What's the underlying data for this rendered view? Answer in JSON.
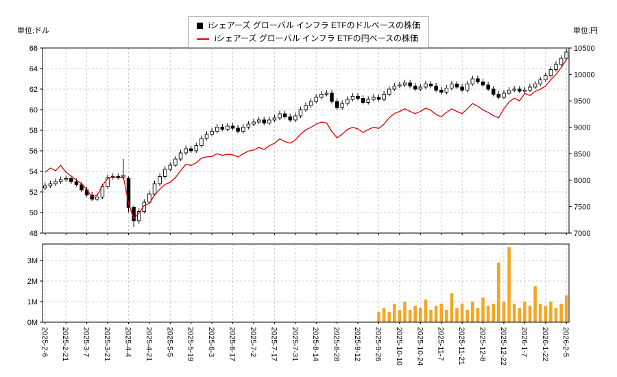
{
  "legend": {
    "usd_label": "iシェアーズ グローバル インフラ ETFのドルベースの株価",
    "jpy_label": "iシェアーズ グローバル インフラ ETFの円ベースの株価"
  },
  "axes": {
    "left_unit": "単位:ドル",
    "right_unit": "単位:円"
  },
  "colors": {
    "usd": "#000000",
    "jpy": "#dd0000",
    "volume": "#f5a623",
    "grid": "#cccccc"
  },
  "chart_data": [
    {
      "type": "candlestick",
      "name": "price-panel",
      "y_left": {
        "unit": "単位:ドル",
        "min": 48,
        "max": 66,
        "ticks": [
          48,
          50,
          52,
          54,
          56,
          58,
          60,
          62,
          64,
          66
        ]
      },
      "y_right": {
        "unit": "単位:円",
        "min": 7000,
        "max": 10500,
        "ticks": [
          7000,
          7500,
          8000,
          8500,
          9000,
          9500,
          10000,
          10500
        ]
      },
      "x_ticks": {
        "indices": [
          0,
          4,
          8,
          12,
          16,
          20,
          24,
          28,
          32,
          36,
          40,
          44,
          48,
          52,
          56,
          60,
          64,
          68,
          72,
          76,
          80,
          84,
          88,
          92,
          96,
          100
        ],
        "labels": [
          "2025-2-6",
          "2025-2-21",
          "2025-3-7",
          "2025-3-21",
          "2025-4-4",
          "2025-4-21",
          "2025-5-5",
          "2025-5-19",
          "2025-6-3",
          "2025-6-17",
          "2025-7-2",
          "2025-7-17",
          "2025-7-31",
          "2025-8-14",
          "2025-8-28",
          "2025-9-12",
          "2025-9-26",
          "2025-10-10",
          "2025-10-24",
          "2025-11-7",
          "2025-11-21",
          "2025-12-8",
          "2025-12-22",
          "2026-1-7",
          "2026-1-22",
          "2026-2-5"
        ]
      },
      "series": [
        {
          "name": "iシェアーズ グローバル インフラ ETFのドルベースの株価",
          "type": "candlestick",
          "axis": "left",
          "color": "#000000",
          "ohlc": [
            [
              52.4,
              52.9,
              52.2,
              52.6
            ],
            [
              52.6,
              53.1,
              52.4,
              52.8
            ],
            [
              52.8,
              53.3,
              52.6,
              53.0
            ],
            [
              53.0,
              53.5,
              52.8,
              53.2
            ],
            [
              53.2,
              53.6,
              53.0,
              53.3
            ],
            [
              53.3,
              53.6,
              52.8,
              53.0
            ],
            [
              53.0,
              53.3,
              52.5,
              52.7
            ],
            [
              52.7,
              53.0,
              52.0,
              52.2
            ],
            [
              52.2,
              52.5,
              51.5,
              51.7
            ],
            [
              51.7,
              52.0,
              51.1,
              51.3
            ],
            [
              51.3,
              51.8,
              51.1,
              51.5
            ],
            [
              51.5,
              52.8,
              51.3,
              52.5
            ],
            [
              52.5,
              53.7,
              52.3,
              53.4
            ],
            [
              53.4,
              53.8,
              53.2,
              53.5
            ],
            [
              53.5,
              53.8,
              53.2,
              53.4
            ],
            [
              53.4,
              55.2,
              53.2,
              53.6
            ],
            [
              53.3,
              53.5,
              50.0,
              50.5
            ],
            [
              50.5,
              50.7,
              48.6,
              49.2
            ],
            [
              49.2,
              50.4,
              48.9,
              50.1
            ],
            [
              50.1,
              51.3,
              49.9,
              51.0
            ],
            [
              51.0,
              52.1,
              50.8,
              51.8
            ],
            [
              51.8,
              53.1,
              51.6,
              52.8
            ],
            [
              52.8,
              53.8,
              52.6,
              53.5
            ],
            [
              53.5,
              54.5,
              53.3,
              54.2
            ],
            [
              54.2,
              54.9,
              54.0,
              54.6
            ],
            [
              54.6,
              55.5,
              54.4,
              55.2
            ],
            [
              55.2,
              56.1,
              55.0,
              55.8
            ],
            [
              55.8,
              56.5,
              55.6,
              56.2
            ],
            [
              56.2,
              56.5,
              55.8,
              56.0
            ],
            [
              56.0,
              56.8,
              55.8,
              56.5
            ],
            [
              56.5,
              57.5,
              56.3,
              57.2
            ],
            [
              57.2,
              57.9,
              57.0,
              57.6
            ],
            [
              57.6,
              58.2,
              57.4,
              57.9
            ],
            [
              57.9,
              58.6,
              57.7,
              58.3
            ],
            [
              58.3,
              58.6,
              57.9,
              58.1
            ],
            [
              58.1,
              58.7,
              57.9,
              58.4
            ],
            [
              58.4,
              58.7,
              58.0,
              58.2
            ],
            [
              58.2,
              58.5,
              57.7,
              57.9
            ],
            [
              57.9,
              58.6,
              57.7,
              58.3
            ],
            [
              58.3,
              58.9,
              58.1,
              58.6
            ],
            [
              58.6,
              59.1,
              58.4,
              58.8
            ],
            [
              58.8,
              59.3,
              58.6,
              59.0
            ],
            [
              59.0,
              59.3,
              58.5,
              58.7
            ],
            [
              58.7,
              59.3,
              58.5,
              59.0
            ],
            [
              59.0,
              59.5,
              58.8,
              59.2
            ],
            [
              59.2,
              59.9,
              59.0,
              59.6
            ],
            [
              59.6,
              59.9,
              59.1,
              59.3
            ],
            [
              59.3,
              59.6,
              58.8,
              59.0
            ],
            [
              59.0,
              59.7,
              58.8,
              59.4
            ],
            [
              59.4,
              60.3,
              59.2,
              60.0
            ],
            [
              60.0,
              60.7,
              59.8,
              60.4
            ],
            [
              60.4,
              61.1,
              60.2,
              60.8
            ],
            [
              60.8,
              61.5,
              60.6,
              61.2
            ],
            [
              61.2,
              61.8,
              61.0,
              61.5
            ],
            [
              61.5,
              61.9,
              61.3,
              61.6
            ],
            [
              61.6,
              61.9,
              60.6,
              60.8
            ],
            [
              60.8,
              61.1,
              60.0,
              60.2
            ],
            [
              60.2,
              60.9,
              60.0,
              60.6
            ],
            [
              60.6,
              61.3,
              60.4,
              61.0
            ],
            [
              61.0,
              61.6,
              60.8,
              61.3
            ],
            [
              61.3,
              61.6,
              60.9,
              61.1
            ],
            [
              61.1,
              61.4,
              60.5,
              60.7
            ],
            [
              60.7,
              61.3,
              60.5,
              61.0
            ],
            [
              61.0,
              61.5,
              60.8,
              61.2
            ],
            [
              61.2,
              61.5,
              60.8,
              61.0
            ],
            [
              61.0,
              61.8,
              60.8,
              61.5
            ],
            [
              61.5,
              62.3,
              61.3,
              62.0
            ],
            [
              62.0,
              62.6,
              61.8,
              62.3
            ],
            [
              62.3,
              62.7,
              62.1,
              62.4
            ],
            [
              62.4,
              62.9,
              62.2,
              62.6
            ],
            [
              62.6,
              62.9,
              62.1,
              62.3
            ],
            [
              62.3,
              62.6,
              61.8,
              62.0
            ],
            [
              62.0,
              62.5,
              61.8,
              62.2
            ],
            [
              62.2,
              62.8,
              62.0,
              62.5
            ],
            [
              62.5,
              62.8,
              62.1,
              62.3
            ],
            [
              62.3,
              62.6,
              61.7,
              61.9
            ],
            [
              61.9,
              62.2,
              61.5,
              61.7
            ],
            [
              61.7,
              62.4,
              61.5,
              62.1
            ],
            [
              62.1,
              62.8,
              61.9,
              62.5
            ],
            [
              62.5,
              62.8,
              62.0,
              62.2
            ],
            [
              62.2,
              62.5,
              61.7,
              61.9
            ],
            [
              61.9,
              62.8,
              61.7,
              62.5
            ],
            [
              62.5,
              63.3,
              62.3,
              63.0
            ],
            [
              63.0,
              63.3,
              62.5,
              62.7
            ],
            [
              62.7,
              63.0,
              62.2,
              62.4
            ],
            [
              62.4,
              62.7,
              61.8,
              62.0
            ],
            [
              62.0,
              62.3,
              61.3,
              61.5
            ],
            [
              61.5,
              61.8,
              61.0,
              61.2
            ],
            [
              61.2,
              61.9,
              61.0,
              61.6
            ],
            [
              61.6,
              62.2,
              61.4,
              61.9
            ],
            [
              61.9,
              62.3,
              61.7,
              62.0
            ],
            [
              62.0,
              62.3,
              61.6,
              61.8
            ],
            [
              61.8,
              62.2,
              61.6,
              61.9
            ],
            [
              61.9,
              62.5,
              61.7,
              62.2
            ],
            [
              62.2,
              62.8,
              62.0,
              62.5
            ],
            [
              62.5,
              63.2,
              62.3,
              62.9
            ],
            [
              62.9,
              63.6,
              62.7,
              63.3
            ],
            [
              63.3,
              64.2,
              63.1,
              63.9
            ],
            [
              63.9,
              64.7,
              63.7,
              64.4
            ],
            [
              64.4,
              65.3,
              64.2,
              65.0
            ],
            [
              65.0,
              65.9,
              64.8,
              65.6
            ]
          ]
        },
        {
          "name": "iシェアーズ グローバル インフラ ETFの円ベースの株価",
          "type": "line",
          "axis": "right",
          "color": "#dd0000",
          "values": [
            8150,
            8230,
            8180,
            8280,
            8150,
            8080,
            8000,
            7930,
            7820,
            7680,
            7720,
            7900,
            8030,
            8060,
            8040,
            8070,
            7560,
            7270,
            7380,
            7520,
            7560,
            7720,
            7830,
            7920,
            7960,
            8050,
            8180,
            8300,
            8280,
            8330,
            8420,
            8440,
            8450,
            8500,
            8470,
            8490,
            8480,
            8440,
            8500,
            8550,
            8570,
            8620,
            8580,
            8650,
            8700,
            8780,
            8730,
            8700,
            8760,
            8870,
            8950,
            9000,
            9060,
            9100,
            9080,
            8920,
            8800,
            8870,
            8960,
            9000,
            8970,
            8900,
            8960,
            9000,
            8980,
            9060,
            9180,
            9260,
            9300,
            9350,
            9300,
            9260,
            9300,
            9360,
            9320,
            9240,
            9200,
            9280,
            9350,
            9300,
            9260,
            9350,
            9450,
            9400,
            9330,
            9280,
            9220,
            9180,
            9350,
            9480,
            9550,
            9500,
            9640,
            9600,
            9680,
            9720,
            9780,
            9900,
            10000,
            10130,
            10280
          ]
        }
      ]
    },
    {
      "type": "bar",
      "name": "volume-panel",
      "color": "#f5a623",
      "y_ticks": [
        0,
        1,
        2,
        3
      ],
      "y_tick_labels": [
        "0M",
        "1M",
        "2M",
        "3M"
      ],
      "values_millions": [
        0,
        0,
        0,
        0,
        0,
        0,
        0,
        0,
        0,
        0,
        0,
        0,
        0,
        0,
        0,
        0,
        0,
        0,
        0,
        0,
        0,
        0,
        0,
        0,
        0,
        0,
        0,
        0,
        0,
        0,
        0,
        0,
        0,
        0,
        0,
        0,
        0,
        0,
        0,
        0,
        0,
        0,
        0,
        0,
        0,
        0,
        0,
        0,
        0,
        0,
        0,
        0,
        0,
        0,
        0,
        0,
        0,
        0,
        0,
        0,
        0,
        0,
        0,
        0,
        0.5,
        0.7,
        0.5,
        0.9,
        0.6,
        1.0,
        0.6,
        0.8,
        0.7,
        1.1,
        0.6,
        0.8,
        0.9,
        0.6,
        1.4,
        0.7,
        0.9,
        0.6,
        1.0,
        0.7,
        1.2,
        0.8,
        0.9,
        2.9,
        1.0,
        3.65,
        0.9,
        0.7,
        1.0,
        0.8,
        1.75,
        0.9,
        0.8,
        1.0,
        0.7,
        0.9,
        1.3
      ]
    }
  ]
}
